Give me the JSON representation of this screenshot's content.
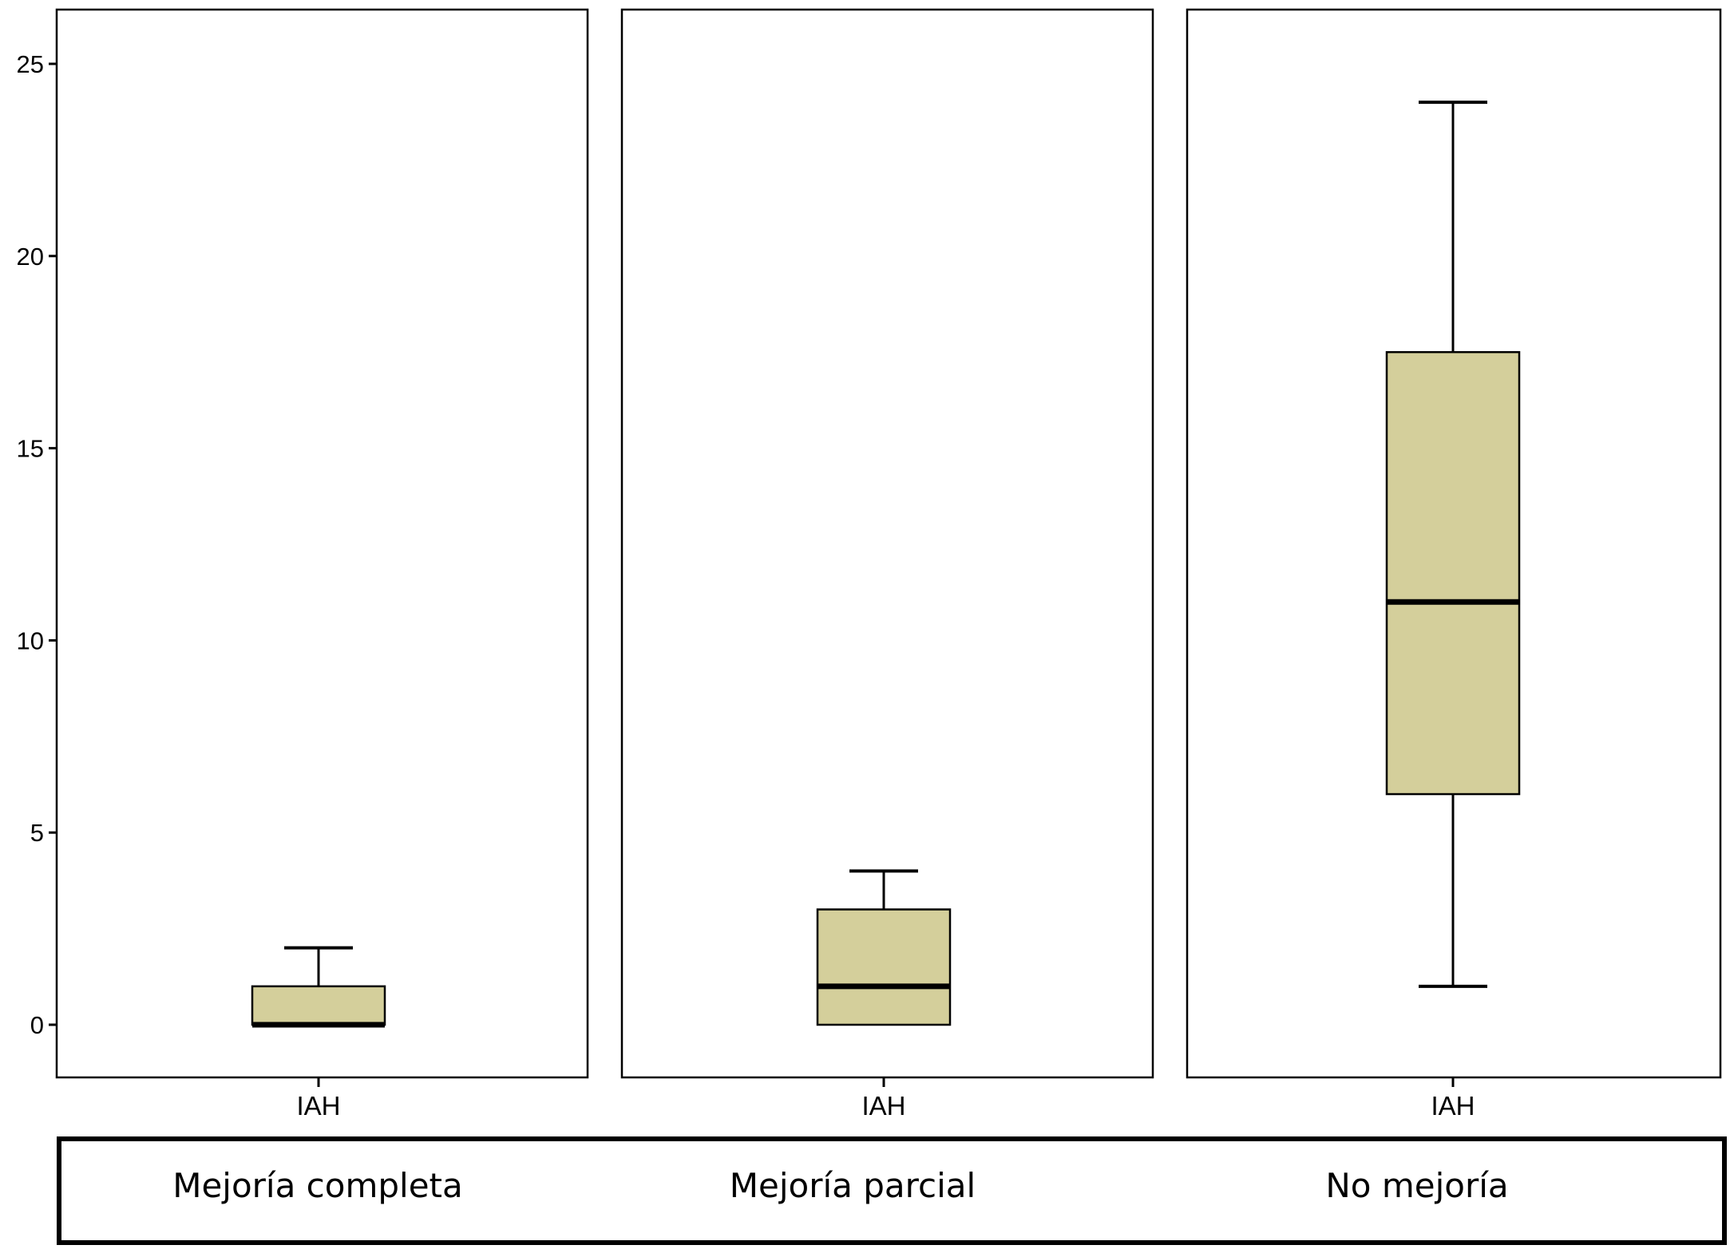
{
  "chart_data": {
    "type": "boxplot",
    "y_axis": {
      "range": [
        -2.5,
        27.8
      ],
      "ticks": [
        0,
        5,
        10,
        15,
        20,
        25
      ],
      "tick_labels": [
        "0",
        "5",
        "10",
        "15",
        "20",
        "25"
      ]
    },
    "grid": false,
    "box_fill": "#d4cf9b",
    "panels": [
      {
        "group_label": "Mejoría completa",
        "category_label": "IAH",
        "stats": {
          "min": 0,
          "q1": 0,
          "median": 0,
          "q3": 1,
          "max": 2
        }
      },
      {
        "group_label": "Mejoría parcial",
        "category_label": "IAH",
        "stats": {
          "min": 0,
          "q1": 0,
          "median": 1,
          "q3": 3,
          "max": 4
        }
      },
      {
        "group_label": "No mejoría",
        "category_label": "IAH",
        "stats": {
          "min": 1,
          "q1": 6,
          "median": 11,
          "q3": 17.5,
          "max": 24
        }
      }
    ]
  }
}
